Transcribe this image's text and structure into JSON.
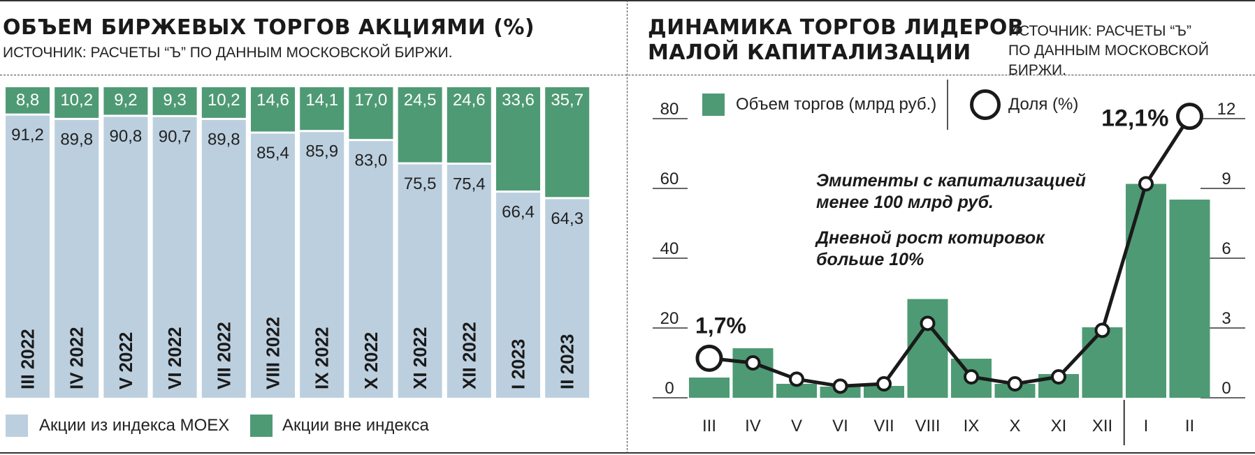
{
  "left": {
    "title": "ОБЪЕМ БИРЖЕВЫХ ТОРГОВ АКЦИЯМИ (%)",
    "source": "ИСТОЧНИК: РАСЧЕТЫ “Ъ”  ПО ДАННЫМ МОСКОВСКОЙ БИРЖИ.",
    "legend": [
      {
        "label": "Акции из индекса MOEX",
        "color": "#bccfdf"
      },
      {
        "label": "Акции вне индекса",
        "color": "#4e9a74"
      }
    ]
  },
  "right": {
    "title_line1": "ДИНАМИКА ТОРГОВ ЛИДЕРОВ",
    "title_line2": "МАЛОЙ КАПИТАЛИЗАЦИИ",
    "source_line1": "ИСТОЧНИК: РАСЧЕТЫ “Ъ”",
    "source_line2": "ПО ДАННЫМ МОСКОВСКОЙ БИРЖИ.",
    "legend": [
      {
        "label": "Объем торгов (млрд руб.)",
        "color": "#4e9a74"
      },
      {
        "label": "Доля (%)"
      }
    ],
    "annotation_line1": "Эмитенты с капитализацией",
    "annotation_line2": "менее 100 млрд руб.",
    "annotation_line3": "Дневной рост котировок",
    "annotation_line4": "больше 10%",
    "callout_first": "1,7%",
    "callout_last": "12,1%"
  },
  "chart_data": [
    {
      "type": "bar",
      "stacked": true,
      "categories": [
        "III 2022",
        "IV 2022",
        "V 2022",
        "VI 2022",
        "VII 2022",
        "VIII 2022",
        "IX 2022",
        "X 2022",
        "XI 2022",
        "XII 2022",
        "I 2023",
        "II 2023"
      ],
      "series": [
        {
          "name": "Акции из индекса MOEX",
          "values": [
            91.2,
            89.8,
            90.8,
            90.7,
            89.8,
            85.4,
            85.9,
            83.0,
            75.5,
            75.4,
            66.4,
            64.3
          ],
          "labels": [
            "91,2",
            "89,8",
            "90,8",
            "90,7",
            "89,8",
            "85,4",
            "85,9",
            "83,0",
            "75,5",
            "75,4",
            "66,4",
            "64,3"
          ],
          "color": "#bccfdf"
        },
        {
          "name": "Акции вне индекса",
          "values": [
            8.8,
            10.2,
            9.2,
            9.3,
            10.2,
            14.6,
            14.1,
            17.0,
            24.5,
            24.6,
            33.6,
            35.7
          ],
          "labels": [
            "8,8",
            "10,2",
            "9,2",
            "9,3",
            "10,2",
            "14,6",
            "14,1",
            "17,0",
            "24,5",
            "24,6",
            "33,6",
            "35,7"
          ],
          "color": "#4e9a74"
        }
      ],
      "ylim": [
        0,
        100
      ],
      "legend_position": "bottom"
    },
    {
      "type": "bar+line",
      "categories": [
        "III",
        "IV",
        "V",
        "VI",
        "VII",
        "VIII",
        "IX",
        "X",
        "XI",
        "XII",
        "I",
        "II"
      ],
      "bars": {
        "name": "Объем торгов (млрд руб.)",
        "values": [
          5.8,
          14.2,
          4.0,
          3.2,
          3.4,
          28.3,
          11.2,
          4.0,
          6.8,
          20.2,
          61.3,
          56.8
        ],
        "color": "#4e9a74"
      },
      "line": {
        "name": "Доля (%)",
        "values": [
          1.7,
          1.5,
          0.8,
          0.5,
          0.6,
          3.2,
          0.9,
          0.6,
          0.9,
          2.9,
          9.2,
          12.1
        ]
      },
      "y_left": {
        "ticks": [
          0,
          20,
          40,
          60,
          80
        ],
        "ylim": [
          0,
          80
        ]
      },
      "y_right": {
        "ticks": [
          0,
          3,
          6,
          9,
          12
        ],
        "ylim": [
          0,
          12
        ]
      },
      "legend_position": "top"
    }
  ]
}
